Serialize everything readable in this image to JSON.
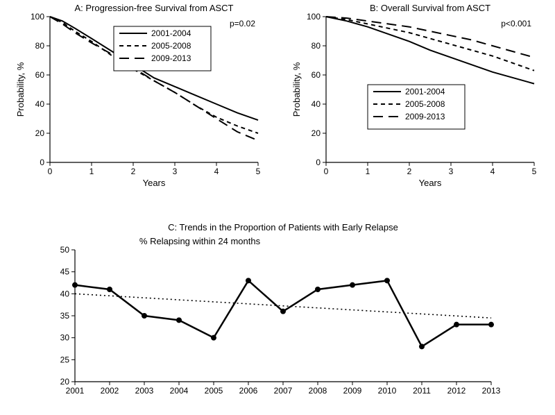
{
  "panelA": {
    "type": "line",
    "title": "A: Progression-free Survival from ASCT",
    "pvalue": "p=0.02",
    "xlabel": "Years",
    "ylabel": "Probability, %",
    "xlim": [
      0,
      5
    ],
    "ylim": [
      0,
      100
    ],
    "xticks": [
      0,
      1,
      2,
      3,
      4,
      5
    ],
    "yticks": [
      0,
      20,
      40,
      60,
      80,
      100
    ],
    "background": "#ffffff",
    "line_color": "#000000",
    "line_width": 2,
    "legend_box": true,
    "legend_pos": "upper-center-right",
    "series": [
      {
        "label": "2001-2004",
        "dash": "solid",
        "x": [
          0,
          0.3,
          0.6,
          1,
          1.5,
          2,
          2.5,
          3,
          3.5,
          4,
          4.5,
          5
        ],
        "y": [
          100,
          97,
          92,
          85,
          76,
          67,
          58,
          52,
          46,
          40,
          34,
          29
        ]
      },
      {
        "label": "2005-2008",
        "dash": "short",
        "x": [
          0,
          0.3,
          0.6,
          1,
          1.5,
          2,
          2.5,
          3,
          3.5,
          4,
          4.5,
          5
        ],
        "y": [
          100,
          96,
          90,
          83,
          73,
          64,
          56,
          48,
          39,
          31,
          25,
          20
        ]
      },
      {
        "label": "2009-2013",
        "dash": "long",
        "x": [
          0,
          0.3,
          0.6,
          1,
          1.5,
          2,
          2.5,
          3,
          3.5,
          4,
          4.5,
          5
        ],
        "y": [
          100,
          95,
          89,
          82,
          74,
          65,
          56,
          48,
          39,
          30,
          21,
          15
        ]
      }
    ]
  },
  "panelB": {
    "type": "line",
    "title": "B: Overall Survival from ASCT",
    "pvalue": "p<0.001",
    "xlabel": "Years",
    "ylabel": "Probability, %",
    "xlim": [
      0,
      5
    ],
    "ylim": [
      0,
      100
    ],
    "xticks": [
      0,
      1,
      2,
      3,
      4,
      5
    ],
    "yticks": [
      0,
      20,
      40,
      60,
      80,
      100
    ],
    "background": "#ffffff",
    "line_color": "#000000",
    "line_width": 2,
    "legend_box": true,
    "legend_pos": "middle-left",
    "series": [
      {
        "label": "2001-2004",
        "dash": "solid",
        "x": [
          0,
          0.5,
          1,
          1.5,
          2,
          2.5,
          3,
          3.5,
          4,
          4.5,
          5
        ],
        "y": [
          100,
          97,
          93,
          88,
          83,
          77,
          72,
          67,
          62,
          58,
          54
        ]
      },
      {
        "label": "2005-2008",
        "dash": "short",
        "x": [
          0,
          0.5,
          1,
          1.5,
          2,
          2.5,
          3,
          3.5,
          4,
          4.5,
          5
        ],
        "y": [
          100,
          98,
          95,
          92,
          89,
          85,
          81,
          77,
          73,
          68,
          63
        ]
      },
      {
        "label": "2009-2013",
        "dash": "long",
        "x": [
          0,
          0.5,
          1,
          1.5,
          2,
          2.5,
          3,
          3.5,
          4,
          4.5,
          5
        ],
        "y": [
          100,
          99,
          97,
          95,
          93,
          90,
          87,
          84,
          80,
          76,
          72
        ]
      }
    ]
  },
  "panelC": {
    "type": "line",
    "title": "C: Trends in the Proportion of Patients with Early Relapse",
    "subtitle": "% Relapsing within 24 months",
    "xlabel": "",
    "ylabel": "",
    "xlim": [
      2001,
      2013
    ],
    "ylim": [
      20,
      50
    ],
    "xticks": [
      2001,
      2002,
      2003,
      2004,
      2005,
      2006,
      2007,
      2008,
      2009,
      2010,
      2011,
      2012,
      2013
    ],
    "yticks": [
      20,
      25,
      30,
      35,
      40,
      45,
      50
    ],
    "background": "#ffffff",
    "line_color": "#000000",
    "line_width": 2.5,
    "marker": "circle",
    "marker_size": 4,
    "grid": false,
    "series": {
      "x": [
        2001,
        2002,
        2003,
        2004,
        2005,
        2006,
        2007,
        2008,
        2009,
        2010,
        2011,
        2012,
        2013
      ],
      "y": [
        42,
        41,
        35,
        34,
        30,
        43,
        36,
        41,
        42,
        43,
        28,
        33,
        33
      ]
    },
    "trend": {
      "dash": "dotted",
      "x": [
        2001,
        2013
      ],
      "y": [
        40,
        34.5
      ]
    }
  },
  "fonts": {
    "title_size": 13,
    "tick_size": 12,
    "axis_label_size": 13
  },
  "colors": {
    "ink": "#000000",
    "bg": "#ffffff"
  }
}
